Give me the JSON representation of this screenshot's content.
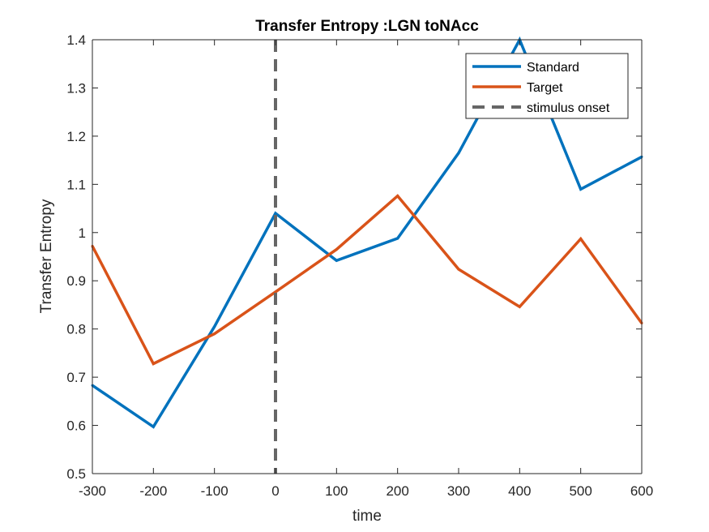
{
  "chart_data": {
    "type": "line",
    "title": "Transfer Entropy :LGN toNAcc",
    "xlabel": "time",
    "ylabel": "Transfer Entropy",
    "xlim": [
      -300,
      600
    ],
    "ylim": [
      0.5,
      1.4
    ],
    "xticks": [
      -300,
      -200,
      -100,
      0,
      100,
      200,
      300,
      400,
      500,
      600
    ],
    "xtick_labels": [
      "-300",
      "-200",
      "-100",
      "0",
      "100",
      "200",
      "300",
      "400",
      "500",
      "600"
    ],
    "yticks": [
      0.5,
      0.6,
      0.7,
      0.8,
      0.9,
      1.0,
      1.1,
      1.2,
      1.3,
      1.4
    ],
    "ytick_labels": [
      "0.5",
      "0.6",
      "0.7",
      "0.8",
      "0.9",
      "1",
      "1.1",
      "1.2",
      "1.3",
      "1.4"
    ],
    "x": [
      -300,
      -200,
      -100,
      0,
      100,
      200,
      300,
      400,
      500,
      600
    ],
    "series": [
      {
        "name": "Standard",
        "color": "#0072BD",
        "values": [
          0.683,
          0.597,
          0.805,
          1.04,
          0.942,
          0.988,
          1.165,
          1.4,
          1.09,
          1.157
        ]
      },
      {
        "name": "Target",
        "color": "#D95319",
        "values": [
          0.972,
          0.728,
          0.79,
          0.877,
          0.965,
          1.076,
          0.924,
          0.846,
          0.987,
          0.812
        ]
      }
    ],
    "vline": {
      "name": "stimulus onset",
      "x": 0,
      "color": "#666666",
      "style": "dashed"
    },
    "legend_position": "top-right",
    "grid": false
  }
}
